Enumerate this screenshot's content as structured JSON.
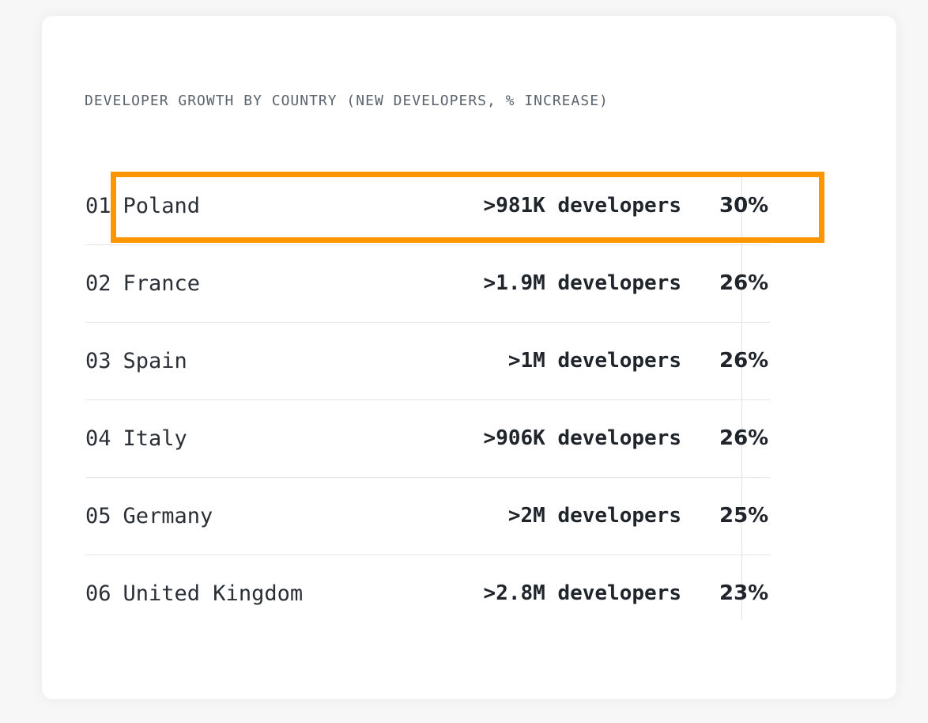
{
  "title": "DEVELOPER GROWTH BY COUNTRY (NEW DEVELOPERS, % INCREASE)",
  "colors": {
    "highlight": "#ff9500",
    "text": "#20252b",
    "muted": "#5b636d",
    "divider": "#e3e5e8"
  },
  "rows": [
    {
      "rank": "01",
      "country": "Poland",
      "developers": ">981K developers",
      "increase": "30%",
      "highlighted": true
    },
    {
      "rank": "02",
      "country": "France",
      "developers": ">1.9M developers",
      "increase": "26%"
    },
    {
      "rank": "03",
      "country": "Spain",
      "developers": ">1M developers",
      "increase": "26%"
    },
    {
      "rank": "04",
      "country": "Italy",
      "developers": ">906K developers",
      "increase": "26%"
    },
    {
      "rank": "05",
      "country": "Germany",
      "developers": ">2M developers",
      "increase": "25%"
    },
    {
      "rank": "06",
      "country": "United Kingdom",
      "developers": ">2.8M developers",
      "increase": "23%"
    }
  ]
}
